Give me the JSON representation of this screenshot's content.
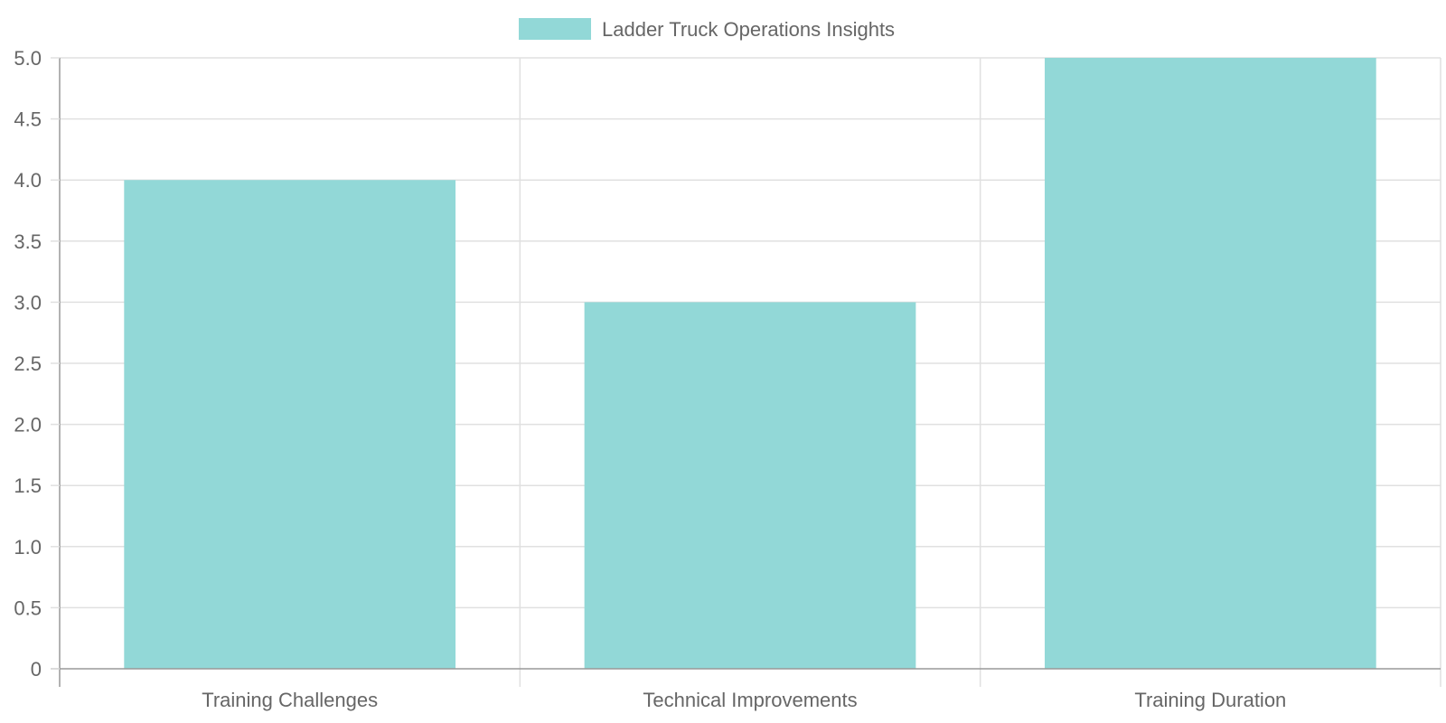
{
  "chart_data": {
    "type": "bar",
    "categories": [
      "Training Challenges",
      "Technical Improvements",
      "Training Duration"
    ],
    "series": [
      {
        "name": "Ladder Truck Operations Insights",
        "values": [
          4,
          3,
          5
        ],
        "color": "#92d8d7"
      }
    ],
    "ylim": [
      0,
      5
    ],
    "yticks": [
      "0",
      "0.5",
      "1.0",
      "1.5",
      "2.0",
      "2.5",
      "3.0",
      "3.5",
      "4.0",
      "4.5",
      "5.0"
    ],
    "grid": true,
    "legend_position": "top-center",
    "title": "",
    "xlabel": "",
    "ylabel": ""
  },
  "colors": {
    "grid": "#e0e0e0",
    "axis": "#999999",
    "text": "#666666"
  }
}
